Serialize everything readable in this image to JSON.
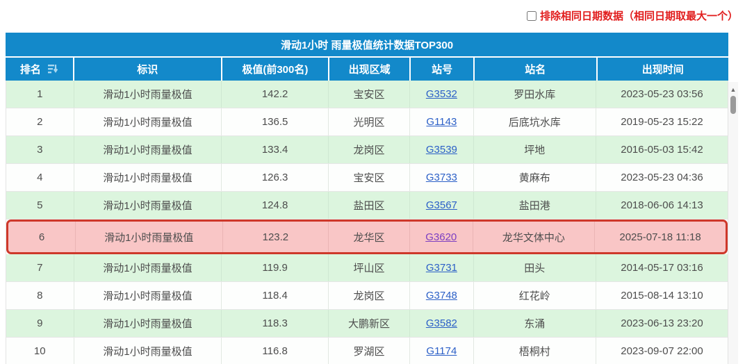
{
  "filter": {
    "label": "排除相同日期数据（相同日期取最大一个）",
    "checked": false
  },
  "table": {
    "title": "滑动1小时 雨量极值统计数据TOP300",
    "columns": [
      "排名",
      "标识",
      "极值(前300名)",
      "出现区域",
      "站号",
      "站名",
      "出现时间"
    ],
    "rows": [
      {
        "rank": "1",
        "label": "滑动1小时雨量极值",
        "value": "142.2",
        "district": "宝安区",
        "station_id": "G3532",
        "station_name": "罗田水库",
        "time": "2023-05-23 03:56",
        "highlighted": false,
        "link_visited": false
      },
      {
        "rank": "2",
        "label": "滑动1小时雨量极值",
        "value": "136.5",
        "district": "光明区",
        "station_id": "G1143",
        "station_name": "后底坑水库",
        "time": "2019-05-23 15:22",
        "highlighted": false,
        "link_visited": false
      },
      {
        "rank": "3",
        "label": "滑动1小时雨量极值",
        "value": "133.4",
        "district": "龙岗区",
        "station_id": "G3539",
        "station_name": "坪地",
        "time": "2016-05-03 15:42",
        "highlighted": false,
        "link_visited": false
      },
      {
        "rank": "4",
        "label": "滑动1小时雨量极值",
        "value": "126.3",
        "district": "宝安区",
        "station_id": "G3733",
        "station_name": "黄麻布",
        "time": "2023-05-23 04:36",
        "highlighted": false,
        "link_visited": false
      },
      {
        "rank": "5",
        "label": "滑动1小时雨量极值",
        "value": "124.8",
        "district": "盐田区",
        "station_id": "G3567",
        "station_name": "盐田港",
        "time": "2018-06-06 14:13",
        "highlighted": false,
        "link_visited": false
      },
      {
        "rank": "6",
        "label": "滑动1小时雨量极值",
        "value": "123.2",
        "district": "龙华区",
        "station_id": "G3620",
        "station_name": "龙华文体中心",
        "time": "2025-07-18 11:18",
        "highlighted": true,
        "link_visited": true
      },
      {
        "rank": "7",
        "label": "滑动1小时雨量极值",
        "value": "119.9",
        "district": "坪山区",
        "station_id": "G3731",
        "station_name": "田头",
        "time": "2014-05-17 03:16",
        "highlighted": false,
        "link_visited": false
      },
      {
        "rank": "8",
        "label": "滑动1小时雨量极值",
        "value": "118.4",
        "district": "龙岗区",
        "station_id": "G3748",
        "station_name": "红花岭",
        "time": "2015-08-14 13:10",
        "highlighted": false,
        "link_visited": false
      },
      {
        "rank": "9",
        "label": "滑动1小时雨量极值",
        "value": "118.3",
        "district": "大鹏新区",
        "station_id": "G3582",
        "station_name": "东涌",
        "time": "2023-06-13 23:20",
        "highlighted": false,
        "link_visited": false
      },
      {
        "rank": "10",
        "label": "滑动1小时雨量极值",
        "value": "116.8",
        "district": "罗湖区",
        "station_id": "G1174",
        "station_name": "梧桐村",
        "time": "2023-09-07 22:00",
        "highlighted": false,
        "link_visited": false
      }
    ]
  },
  "scrollbar": {
    "up_arrow": "▲"
  },
  "colors": {
    "header_blue": "#1389ca",
    "row_green": "#dcf5de",
    "highlight_pink": "#f9c6c6",
    "highlight_border_red": "#ce382a",
    "filter_text_red": "#e11d1d",
    "link_blue": "#2b5fc7",
    "link_visited_purple": "#7c3fc2"
  }
}
